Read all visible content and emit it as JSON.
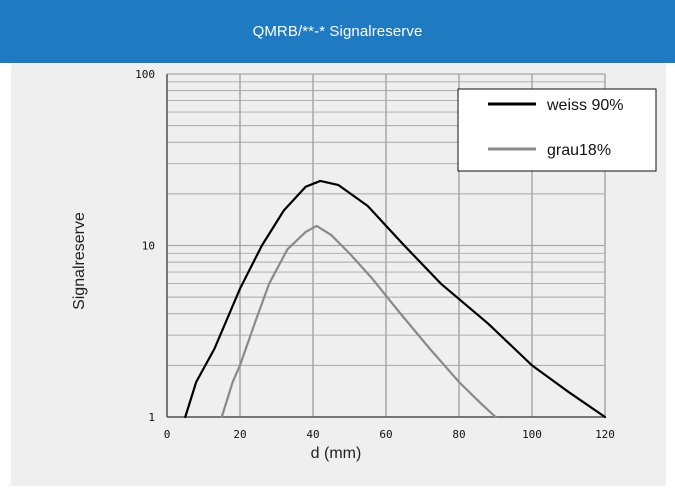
{
  "header": {
    "title": "QMRB/**-* Signalreserve",
    "background": "#1f7bc1"
  },
  "colors": {
    "panel": "#efefef",
    "grid": "#a8a8a8",
    "axis": "#555555",
    "series_black": "#000000",
    "series_gray": "#8a8a8a"
  },
  "chart_data": {
    "type": "line",
    "title": "",
    "xlabel": "d (mm)",
    "ylabel": "Signalreserve",
    "xlim": [
      0,
      120
    ],
    "ylim": [
      1,
      100
    ],
    "y_scale": "log",
    "grid": true,
    "legend_position": "top-right",
    "x_ticks": [
      "0",
      "20",
      "40",
      "60",
      "80",
      "100",
      "120"
    ],
    "y_ticks": [
      "1",
      "10",
      "100"
    ],
    "series": [
      {
        "name": "weiss 90%",
        "color": "#000000",
        "points": [
          {
            "x": 5,
            "y": 1.0
          },
          {
            "x": 8,
            "y": 1.6
          },
          {
            "x": 13,
            "y": 2.5
          },
          {
            "x": 20,
            "y": 5.6
          },
          {
            "x": 26,
            "y": 10.0
          },
          {
            "x": 32,
            "y": 16.0
          },
          {
            "x": 38,
            "y": 22.0
          },
          {
            "x": 42,
            "y": 23.8
          },
          {
            "x": 47,
            "y": 22.5
          },
          {
            "x": 55,
            "y": 17.0
          },
          {
            "x": 65,
            "y": 10.0
          },
          {
            "x": 75,
            "y": 6.0
          },
          {
            "x": 88,
            "y": 3.5
          },
          {
            "x": 100,
            "y": 2.0
          },
          {
            "x": 110,
            "y": 1.4
          },
          {
            "x": 120,
            "y": 1.0
          }
        ]
      },
      {
        "name": "grau18%",
        "color": "#8a8a8a",
        "points": [
          {
            "x": 15,
            "y": 1.0
          },
          {
            "x": 18,
            "y": 1.6
          },
          {
            "x": 20,
            "y": 2.0
          },
          {
            "x": 24,
            "y": 3.5
          },
          {
            "x": 28,
            "y": 6.0
          },
          {
            "x": 33,
            "y": 9.5
          },
          {
            "x": 38,
            "y": 12.0
          },
          {
            "x": 41,
            "y": 13.0
          },
          {
            "x": 45,
            "y": 11.5
          },
          {
            "x": 50,
            "y": 9.0
          },
          {
            "x": 56,
            "y": 6.5
          },
          {
            "x": 64,
            "y": 4.0
          },
          {
            "x": 72,
            "y": 2.5
          },
          {
            "x": 80,
            "y": 1.6
          },
          {
            "x": 86,
            "y": 1.2
          },
          {
            "x": 90,
            "y": 1.0
          }
        ]
      }
    ]
  }
}
